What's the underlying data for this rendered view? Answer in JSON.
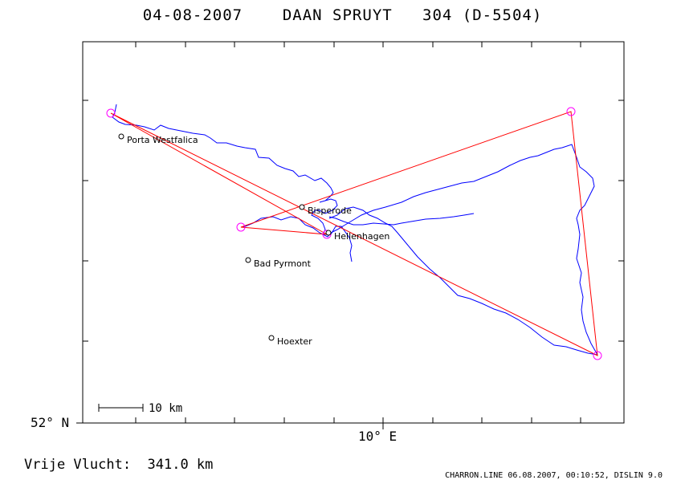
{
  "header": {
    "title": "04-08-2007    DAAN SPRUYT   304 (D-5504)"
  },
  "axes": {
    "lat_label": "52° N",
    "lon_label": "10° E"
  },
  "scale_bar": {
    "label": "10 km"
  },
  "places": [
    {
      "name": "Porta Westfalica"
    },
    {
      "name": "Bisperode"
    },
    {
      "name": "Hellenhagen"
    },
    {
      "name": "Bad Pyrmont"
    },
    {
      "name": "Hoexter"
    }
  ],
  "turnpoint_count": 5,
  "colors": {
    "track": "#0000ff",
    "task_line": "#ff0000",
    "turnpoint_circle": "#ff00ff",
    "frame": "#000000"
  },
  "footer": {
    "distance": "Vrije Vlucht:  341.0 km",
    "credits": "CHARRON.LINE 06.08.2007, 00:10:52, DISLIN 9.0"
  }
}
